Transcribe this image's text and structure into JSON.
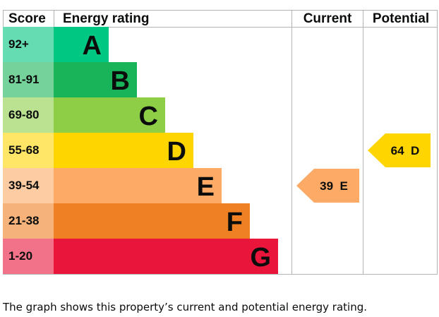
{
  "header": {
    "score": "Score",
    "energy_rating": "Energy rating",
    "current": "Current",
    "potential": "Potential"
  },
  "chart_data": {
    "type": "bar",
    "bands": [
      {
        "letter": "A",
        "range": "92+",
        "color": "#00c781",
        "score_color": "#66dcb3",
        "text_color": "#0b0c0c"
      },
      {
        "letter": "B",
        "range": "81-91",
        "color": "#19b459",
        "score_color": "#75d29b",
        "text_color": "#0b0c0c"
      },
      {
        "letter": "C",
        "range": "69-80",
        "color": "#8dce46",
        "score_color": "#bbe290",
        "text_color": "#0b0c0c"
      },
      {
        "letter": "D",
        "range": "55-68",
        "color": "#ffd500",
        "score_color": "#ffe666",
        "text_color": "#0b0c0c"
      },
      {
        "letter": "E",
        "range": "39-54",
        "color": "#fcaa65",
        "score_color": "#fdcca3",
        "text_color": "#0b0c0c"
      },
      {
        "letter": "F",
        "range": "21-38",
        "color": "#ef8023",
        "score_color": "#f5b37b",
        "text_color": "#0b0c0c"
      },
      {
        "letter": "G",
        "range": "1-20",
        "color": "#e9153b",
        "score_color": "#f27389",
        "text_color": "#0b0c0c"
      }
    ],
    "current": {
      "score": 39,
      "band": "E",
      "label": "39  E",
      "color": "#fcaa65"
    },
    "potential": {
      "score": 64,
      "band": "D",
      "label": "64  D",
      "color": "#ffd500"
    }
  },
  "caption": "The graph shows this property’s current and potential energy rating."
}
